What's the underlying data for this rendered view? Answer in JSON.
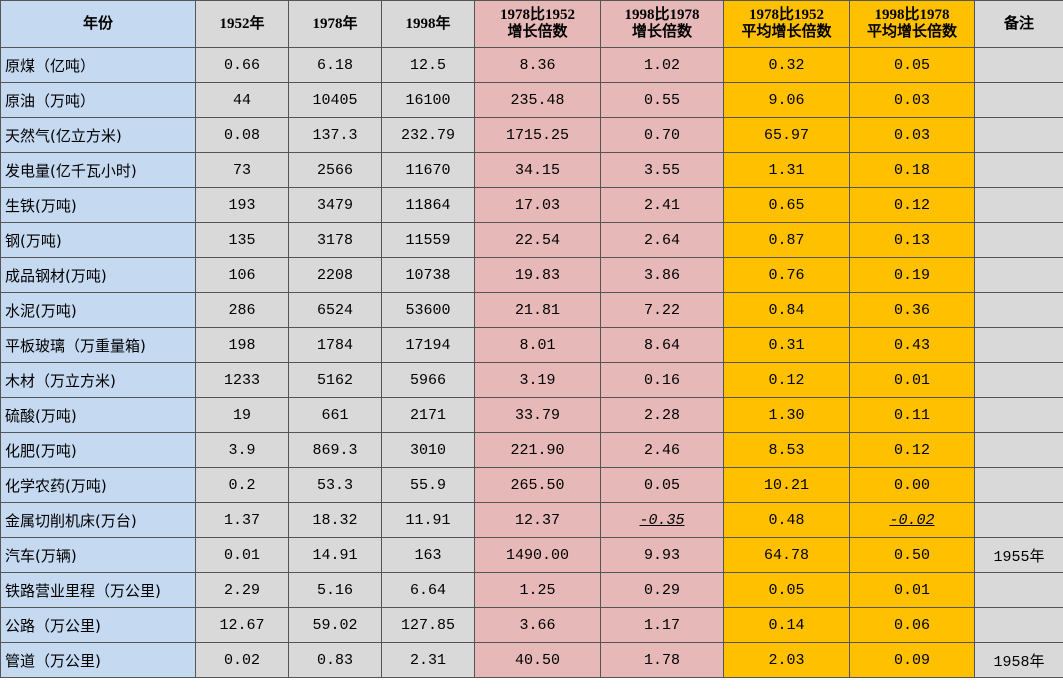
{
  "table": {
    "header": [
      "年份",
      "1952年",
      "1978年",
      "1998年",
      "1978比1952\n增长倍数",
      "1998比1978\n增长倍数",
      "1978比1952\n平均增长倍数",
      "1998比1978\n平均增长倍数",
      "备注"
    ],
    "rows": [
      [
        "原煤（亿吨）",
        "0.66",
        "6.18",
        "12.5",
        "8.36",
        "1.02",
        "0.32",
        "0.05",
        null
      ],
      [
        "原油（万吨）",
        "44",
        "10405",
        "16100",
        "235.48",
        "0.55",
        "9.06",
        "0.03",
        null
      ],
      [
        "天然气(亿立方米)",
        "0.08",
        "137.3",
        "232.79",
        "1715.25",
        "0.70",
        "65.97",
        "0.03",
        null
      ],
      [
        "发电量(亿千瓦小时)",
        "73",
        "2566",
        "11670",
        "34.15",
        "3.55",
        "1.31",
        "0.18",
        null
      ],
      [
        "生铁(万吨)",
        "193",
        "3479",
        "11864",
        "17.03",
        "2.41",
        "0.65",
        "0.12",
        null
      ],
      [
        "钢(万吨)",
        "135",
        "3178",
        "11559",
        "22.54",
        "2.64",
        "0.87",
        "0.13",
        null
      ],
      [
        "成品钢材(万吨)",
        "106",
        "2208",
        "10738",
        "19.83",
        "3.86",
        "0.76",
        "0.19",
        null
      ],
      [
        "水泥(万吨)",
        "286",
        "6524",
        "53600",
        "21.81",
        "7.22",
        "0.84",
        "0.36",
        null
      ],
      [
        "平板玻璃（万重量箱)",
        "198",
        "1784",
        "17194",
        "8.01",
        "8.64",
        "0.31",
        "0.43",
        null
      ],
      [
        "木材（万立方米)",
        "1233",
        "5162",
        "5966",
        "3.19",
        "0.16",
        "0.12",
        "0.01",
        null
      ],
      [
        "硫酸(万吨)",
        "19",
        "661",
        "2171",
        "33.79",
        "2.28",
        "1.30",
        "0.11",
        null
      ],
      [
        "化肥(万吨)",
        "3.9",
        "869.3",
        "3010",
        "221.90",
        "2.46",
        "8.53",
        "0.12",
        null
      ],
      [
        "化学农药(万吨)",
        "0.2",
        "53.3",
        "55.9",
        "265.50",
        "0.05",
        "10.21",
        "0.00",
        null
      ],
      [
        "金属切削机床(万台)",
        "1.37",
        "18.32",
        "11.91",
        "12.37",
        "-0.35",
        "0.48",
        "-0.02",
        null
      ],
      [
        "汽车(万辆)",
        "0.01",
        "14.91",
        "163",
        "1490.00",
        "9.93",
        "64.78",
        "0.50",
        "1955年"
      ],
      [
        "铁路营业里程（万公里)",
        "2.29",
        "5.16",
        "6.64",
        "1.25",
        "0.29",
        "0.05",
        "0.01",
        null
      ],
      [
        "公路（万公里)",
        "12.67",
        "59.02",
        "127.85",
        "3.66",
        "1.17",
        "0.14",
        "0.06",
        null
      ],
      [
        "管道（万公里)",
        "0.02",
        "0.83",
        "2.31",
        "40.50",
        "1.78",
        "2.03",
        "0.09",
        "1958年"
      ]
    ]
  }
}
